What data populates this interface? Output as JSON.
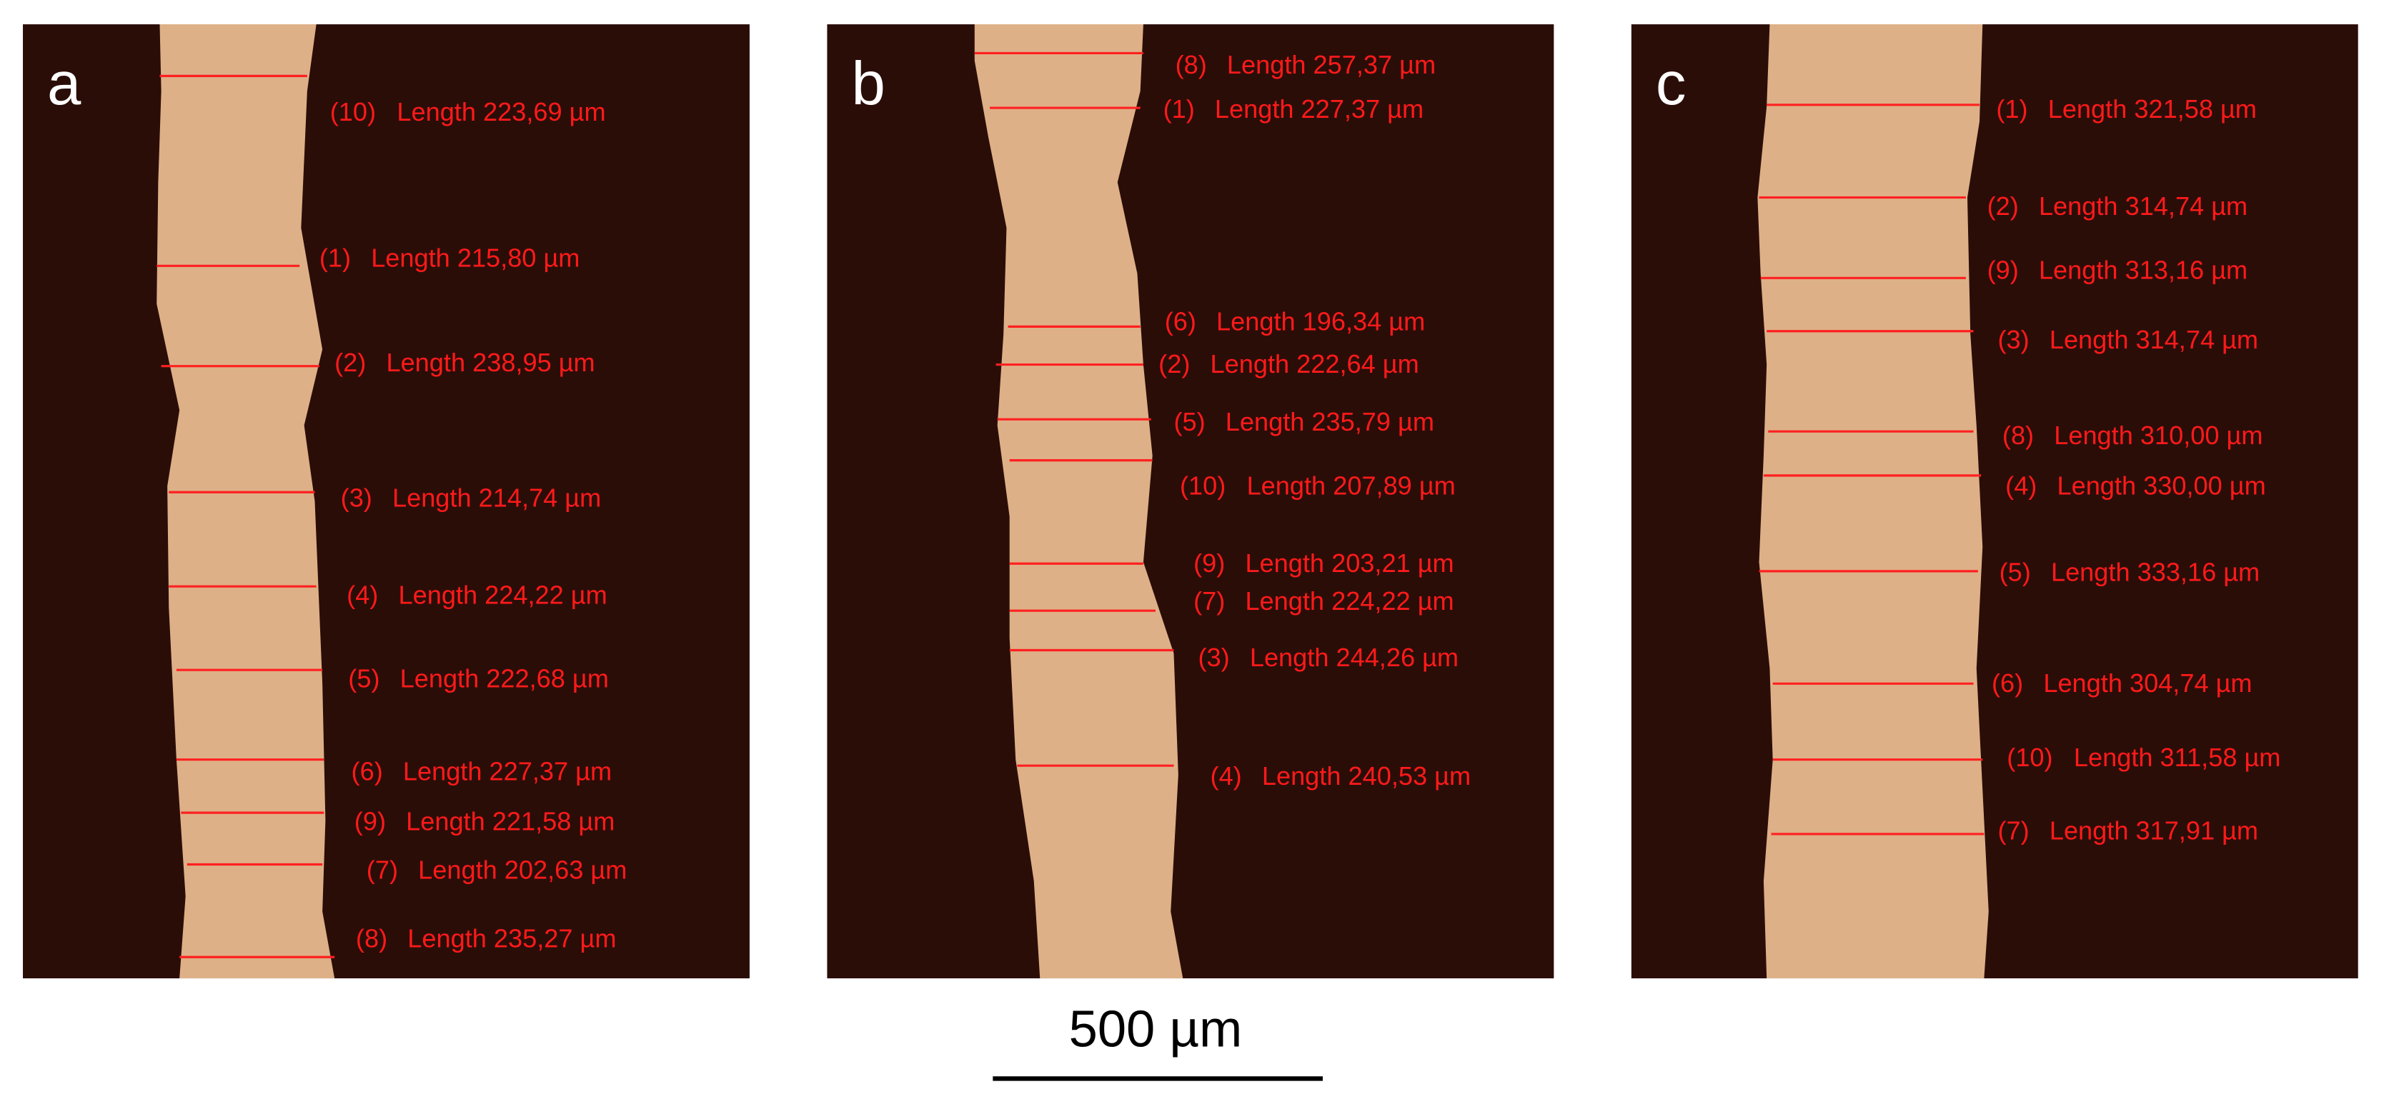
{
  "panels": [
    {
      "label": "a",
      "measurements": [
        {
          "index": "(10)",
          "text": "Length 223,69 µm"
        },
        {
          "index": "(1)",
          "text": "Length 215,80 µm"
        },
        {
          "index": "(2)",
          "text": "Length 238,95 µm"
        },
        {
          "index": "(3)",
          "text": "Length 214,74 µm"
        },
        {
          "index": "(4)",
          "text": "Length 224,22 µm"
        },
        {
          "index": "(5)",
          "text": "Length 222,68 µm"
        },
        {
          "index": "(6)",
          "text": "Length 227,37 µm"
        },
        {
          "index": "(9)",
          "text": "Length 221,58 µm"
        },
        {
          "index": "(7)",
          "text": "Length 202,63 µm"
        },
        {
          "index": "(8)",
          "text": "Length 235,27 µm"
        }
      ]
    },
    {
      "label": "b",
      "measurements": [
        {
          "index": "(8)",
          "text": "Length 257,37 µm"
        },
        {
          "index": "(1)",
          "text": "Length 227,37 µm"
        },
        {
          "index": "(6)",
          "text": "Length 196,34 µm"
        },
        {
          "index": "(2)",
          "text": "Length 222,64 µm"
        },
        {
          "index": "(5)",
          "text": "Length 235,79 µm"
        },
        {
          "index": "(10)",
          "text": "Length 207,89 µm"
        },
        {
          "index": "(9)",
          "text": "Length 203,21 µm"
        },
        {
          "index": "(7)",
          "text": "Length 224,22 µm"
        },
        {
          "index": "(3)",
          "text": "Length 244,26 µm"
        },
        {
          "index": "(4)",
          "text": "Length 240,53 µm"
        }
      ]
    },
    {
      "label": "c",
      "measurements": [
        {
          "index": "(1)",
          "text": "Length 321,58 µm"
        },
        {
          "index": "(2)",
          "text": "Length 314,74 µm"
        },
        {
          "index": "(9)",
          "text": "Length 313,16 µm"
        },
        {
          "index": "(3)",
          "text": "Length 314,74 µm"
        },
        {
          "index": "(8)",
          "text": "Length 310,00 µm"
        },
        {
          "index": "(4)",
          "text": "Length 330,00 µm"
        },
        {
          "index": "(5)",
          "text": "Length 333,16 µm"
        },
        {
          "index": "(6)",
          "text": "Length 304,74 µm"
        },
        {
          "index": "(10)",
          "text": "Length 311,58 µm"
        },
        {
          "index": "(7)",
          "text": "Length 317,91 µm"
        }
      ]
    }
  ],
  "scale_bar": "500 µm"
}
